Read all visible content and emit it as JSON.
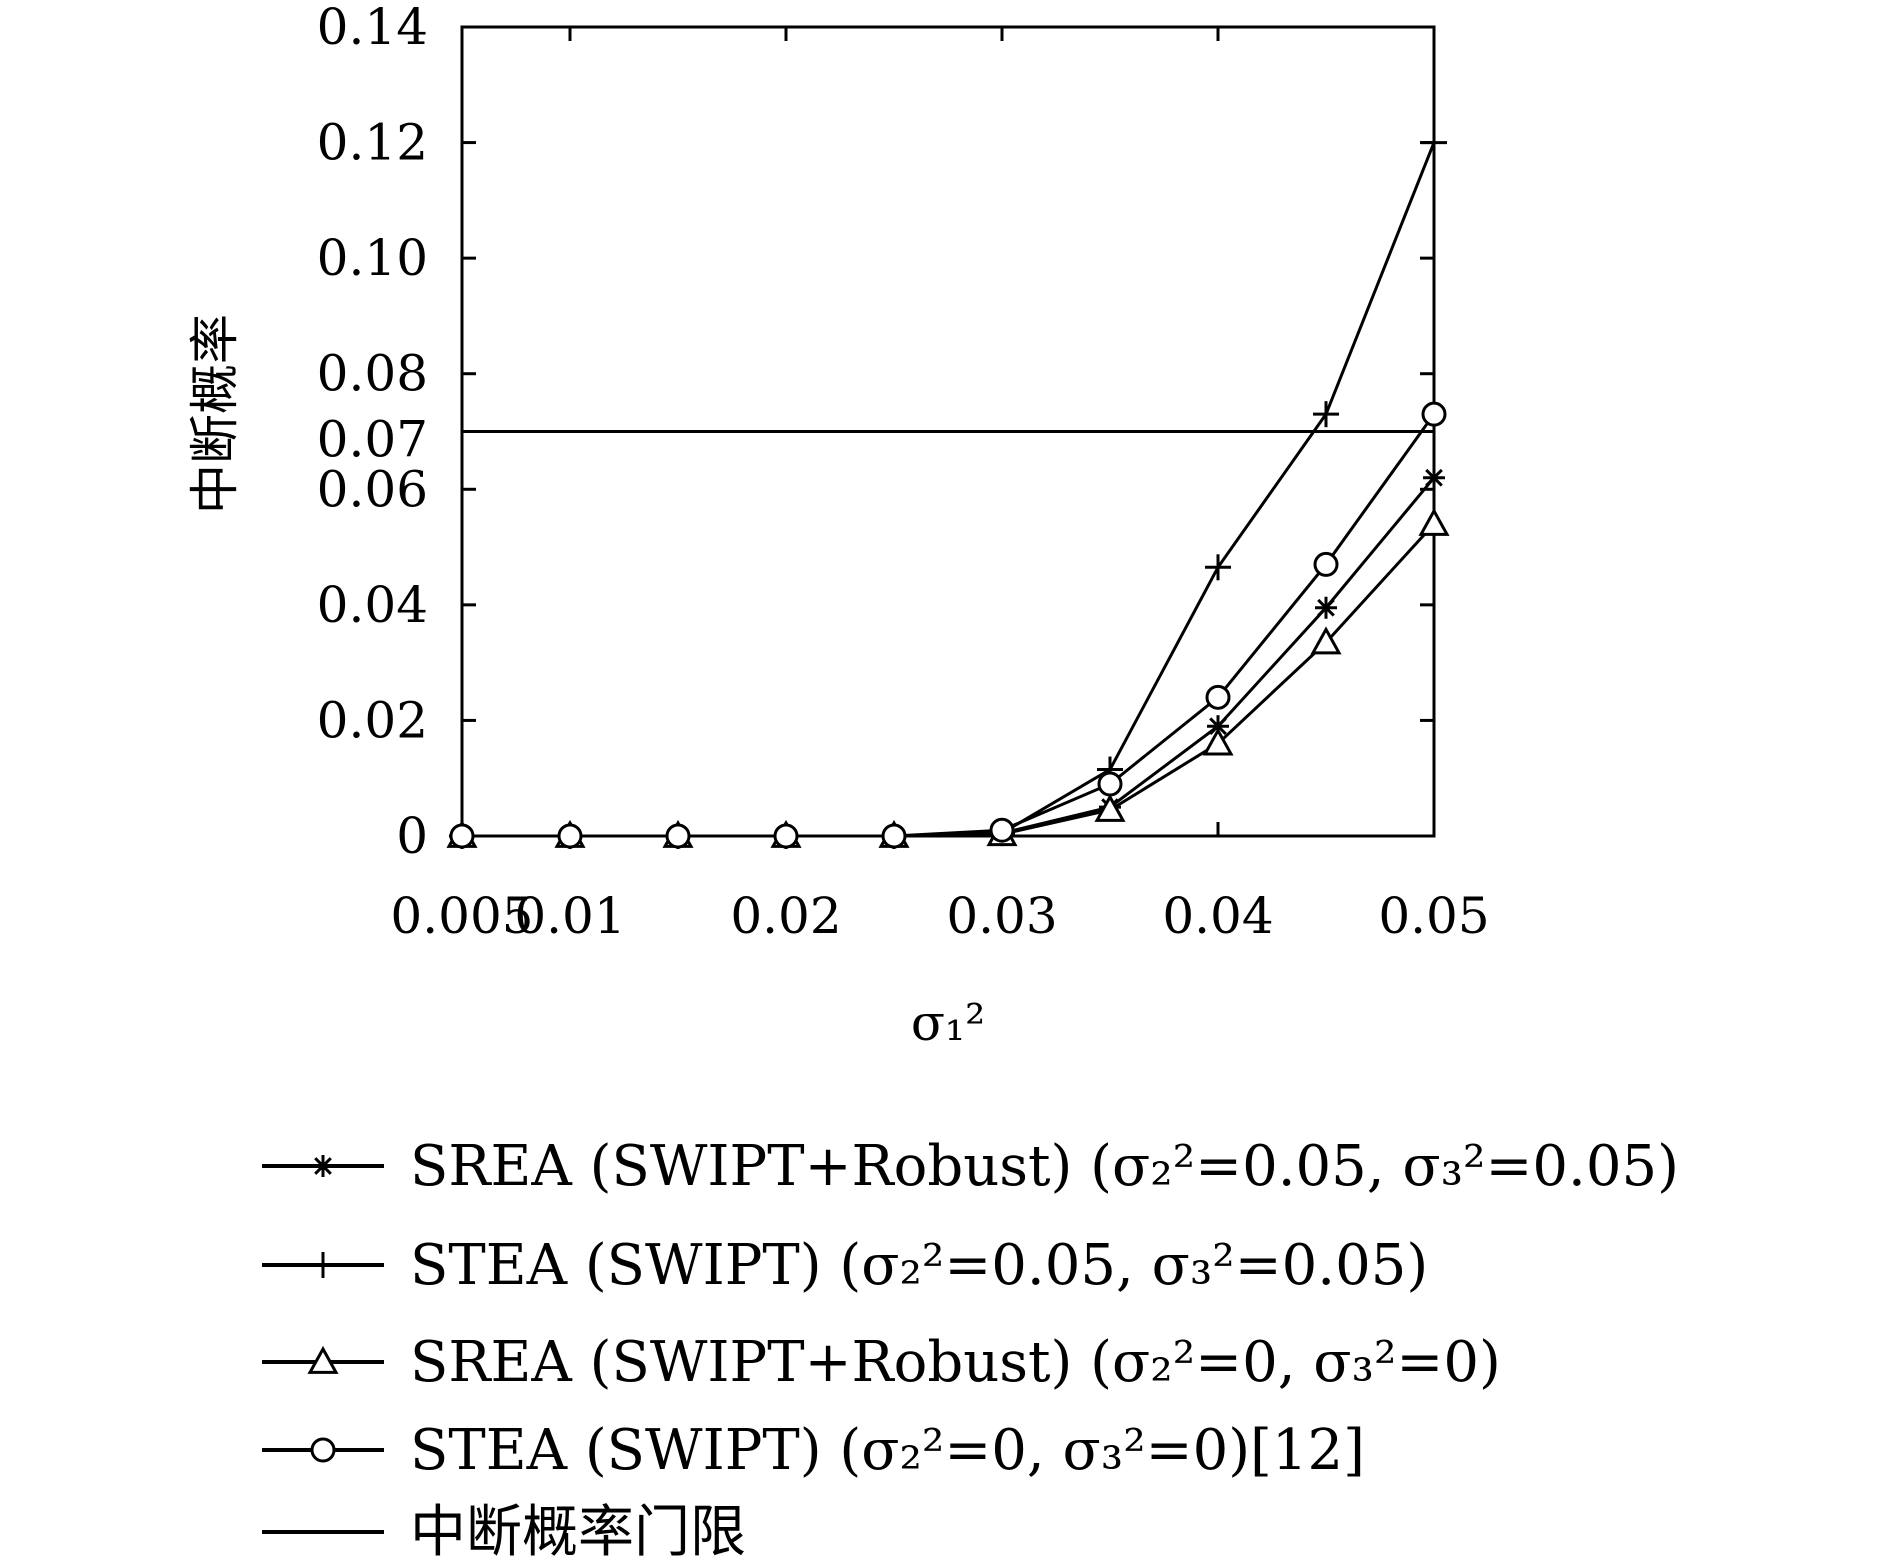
{
  "chart_data": {
    "type": "line",
    "title": "",
    "xlabel": "σ₁²",
    "ylabel": "中断概率",
    "xlim": [
      0.005,
      0.05
    ],
    "ylim": [
      0,
      0.14
    ],
    "x_ticks": [
      {
        "value": 0.005,
        "label": "0.005"
      },
      {
        "value": 0.01,
        "label": "0.01"
      },
      {
        "value": 0.02,
        "label": "0.02"
      },
      {
        "value": 0.03,
        "label": "0.03"
      },
      {
        "value": 0.04,
        "label": "0.04"
      },
      {
        "value": 0.05,
        "label": "0.05"
      }
    ],
    "y_ticks": [
      {
        "value": 0,
        "label": "0"
      },
      {
        "value": 0.02,
        "label": "0.02"
      },
      {
        "value": 0.04,
        "label": "0.04"
      },
      {
        "value": 0.06,
        "label": "0.06"
      },
      {
        "value": 0.07,
        "label": "0.07"
      },
      {
        "value": 0.08,
        "label": "0.08"
      },
      {
        "value": 0.1,
        "label": "0.10"
      },
      {
        "value": 0.12,
        "label": "0.12"
      },
      {
        "value": 0.14,
        "label": "0.14"
      }
    ],
    "x": [
      0.005,
      0.01,
      0.015,
      0.02,
      0.025,
      0.03,
      0.035,
      0.04,
      0.045,
      0.05
    ],
    "series": [
      {
        "name": "SREA (SWIPT+Robust) (σ₂²=0.05, σ₃²=0.05)",
        "marker": "star",
        "values": [
          0,
          0,
          0,
          0,
          0,
          0.0005,
          0.005,
          0.019,
          0.0395,
          0.062
        ]
      },
      {
        "name": "STEA (SWIPT) (σ₂²=0.05, σ₃²=0.05)",
        "marker": "plus",
        "values": [
          0,
          0,
          0,
          0,
          0,
          0.0005,
          0.0115,
          0.0465,
          0.073,
          0.12
        ]
      },
      {
        "name": "SREA (SWIPT+Robust) (σ₂²=0, σ₃²=0)",
        "marker": "triangle",
        "values": [
          0,
          0,
          0,
          0,
          0,
          0.0003,
          0.0045,
          0.016,
          0.0335,
          0.054
        ]
      },
      {
        "name": "STEA (SWIPT) (σ₂²=0, σ₃²=0)[12]",
        "marker": "circle",
        "values": [
          0,
          0,
          0,
          0,
          0,
          0.001,
          0.009,
          0.024,
          0.047,
          0.073
        ]
      }
    ],
    "threshold": {
      "name": "中断概率门限",
      "value": 0.07
    },
    "legend_position": "bottom",
    "grid": false
  }
}
